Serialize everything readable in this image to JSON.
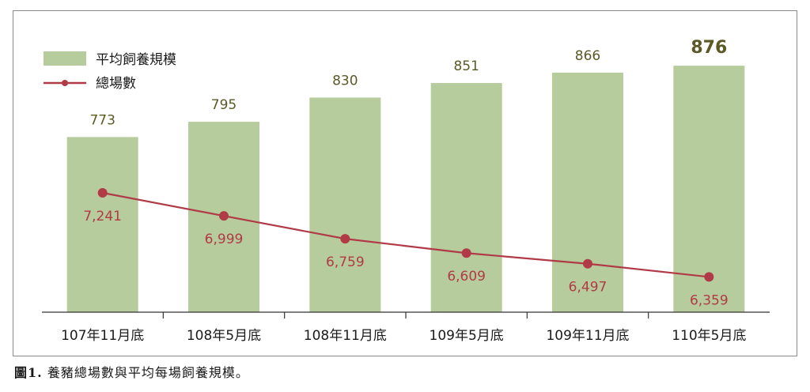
{
  "chart_data": {
    "type": "bar",
    "categories": [
      "107年11月底",
      "108年5月底",
      "108年11月底",
      "109年5月底",
      "109年11月底",
      "110年5月底"
    ],
    "series": [
      {
        "name": "平均飼養規模",
        "type": "bar",
        "values": [
          773,
          795,
          830,
          851,
          866,
          876
        ],
        "value_labels": [
          "773",
          "795",
          "830",
          "851",
          "866",
          "876"
        ]
      },
      {
        "name": "總場數",
        "type": "line",
        "values": [
          7241,
          6999,
          6759,
          6609,
          6497,
          6359
        ],
        "value_labels": [
          "7,241",
          "6,999",
          "6,759",
          "6,609",
          "6,497",
          "6,359"
        ]
      }
    ],
    "legend_position": "top-left",
    "grid": false,
    "colors": {
      "bar": "#b7cc9c",
      "line": "#b03a46",
      "bar_label": "#5a5a26"
    }
  },
  "caption": {
    "number": "圖1.",
    "text": "養豬總場數與平均每場飼養規模。"
  }
}
